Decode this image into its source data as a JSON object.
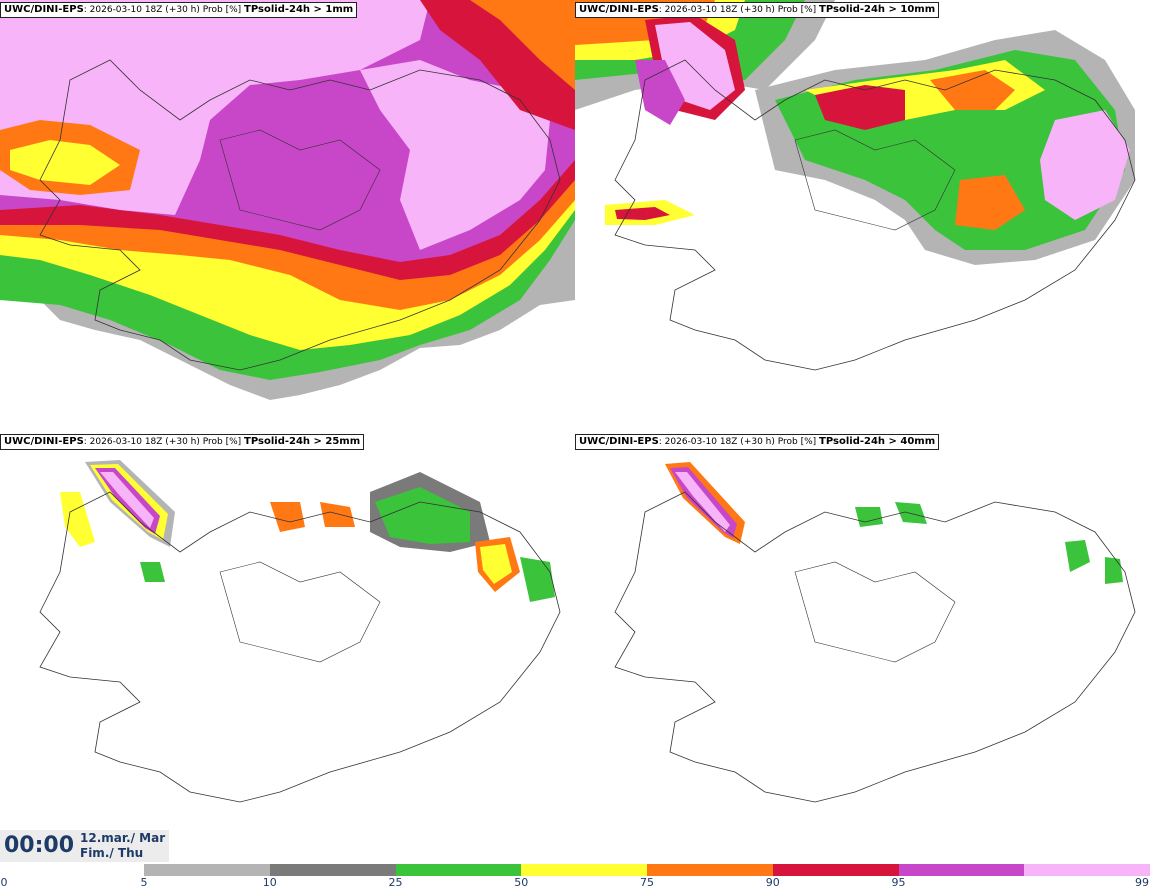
{
  "panels": [
    {
      "source": "UWC/DINI-EPS",
      "info": ": 2026-03-10 18Z (+30 h) Prob [%]",
      "param": "TPsolid-24h > 1mm"
    },
    {
      "source": "UWC/DINI-EPS",
      "info": ": 2026-03-10 18Z (+30 h) Prob [%]",
      "param": "TPsolid-24h > 10mm"
    },
    {
      "source": "UWC/DINI-EPS",
      "info": ": 2026-03-10 18Z (+30 h) Prob [%]",
      "param": "TPsolid-24h > 25mm"
    },
    {
      "source": "UWC/DINI-EPS",
      "info": ": 2026-03-10 18Z (+30 h) Prob [%]",
      "param": "TPsolid-24h > 40mm"
    }
  ],
  "time": {
    "clock": "00:00",
    "date_line1": "12.mar./ Mar",
    "date_line2": "Fim./ Thu"
  },
  "colorbar": {
    "colors": [
      "#b4b4b4",
      "#7a7a7a",
      "#3cc33c",
      "#ffff32",
      "#ff7814",
      "#d7143c",
      "#c846c8",
      "#f8b4f8"
    ],
    "ticks": [
      "0",
      "5",
      "10",
      "25",
      "50",
      "75",
      "90",
      "95",
      "99"
    ]
  }
}
